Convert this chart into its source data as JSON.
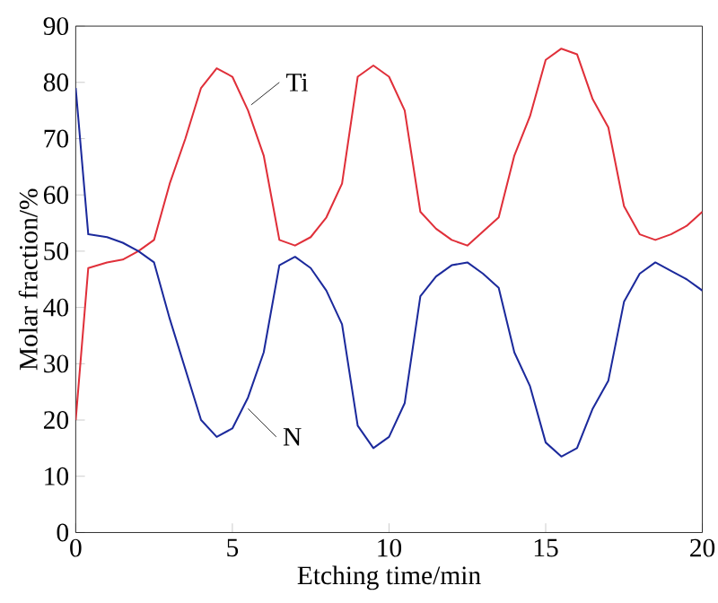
{
  "chart_data": {
    "type": "line",
    "xlabel": "Etching time/min",
    "ylabel": "Molar fraction/%",
    "xlim": [
      0,
      20
    ],
    "xticks": [
      0,
      5,
      10,
      15,
      20
    ],
    "ylim": [
      0,
      90
    ],
    "yticks": [
      0,
      10,
      20,
      30,
      40,
      50,
      60,
      70,
      80,
      90
    ],
    "grid": false,
    "marker": "none",
    "line_style": "solid",
    "x": [
      0,
      0.4,
      1,
      1.5,
      2,
      2.5,
      3,
      3.5,
      4,
      4.5,
      5,
      5.5,
      6,
      6.5,
      7,
      7.5,
      8,
      8.5,
      9,
      9.5,
      10,
      10.5,
      11,
      11.5,
      12,
      12.5,
      13,
      13.5,
      14,
      14.5,
      15,
      15.5,
      16,
      16.5,
      17,
      17.5,
      18,
      18.5,
      19,
      19.5,
      20
    ],
    "series": [
      {
        "name": "Ti",
        "color": "#e0303a",
        "values": [
          20,
          47,
          48,
          48.5,
          50,
          52,
          62,
          70,
          79,
          82.5,
          81,
          75,
          67,
          52,
          51,
          52.5,
          56,
          62,
          81,
          83,
          81,
          75,
          57,
          54,
          52,
          51,
          53.5,
          56,
          67,
          74,
          84,
          86,
          85,
          77,
          72,
          58,
          53,
          52,
          53,
          54.5,
          57
        ]
      },
      {
        "name": "N",
        "color": "#1c2a9c",
        "values": [
          79,
          53,
          52.5,
          51.5,
          50,
          48,
          38,
          29,
          20,
          17,
          18.5,
          24,
          32,
          47.5,
          49,
          47,
          43,
          37,
          19,
          15,
          17,
          23,
          42,
          45.5,
          47.5,
          48,
          46,
          43.5,
          32,
          26,
          16,
          13.5,
          15,
          22,
          27,
          41,
          46,
          48,
          46.5,
          45,
          43
        ]
      }
    ]
  }
}
